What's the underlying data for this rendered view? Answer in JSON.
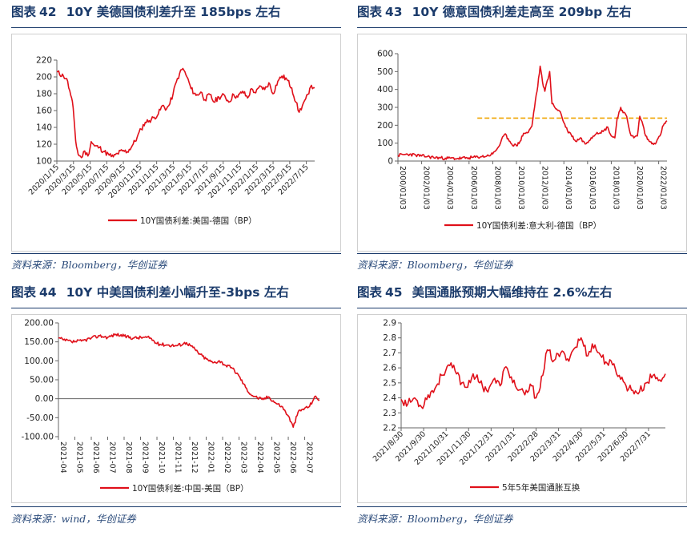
{
  "panels": [
    {
      "title_prefix": "图表",
      "number": "42",
      "title": "10Y 美德国债利差升至 185bps 左右",
      "source": "资料来源：Bloomberg，华创证券",
      "line_color": "#e0101a"
    },
    {
      "title_prefix": "图表",
      "number": "43",
      "title": "10Y 德意国债利差走高至 209bp 左右",
      "source": "资料来源：Bloomberg，华创证券",
      "line_color": "#e0101a",
      "reference_line_color": "#f0a500"
    },
    {
      "title_prefix": "图表",
      "number": "44",
      "title": "10Y 中美国债利差小幅升至-3bps 左右",
      "source": "资料来源：wind，华创证券",
      "line_color": "#e0101a"
    },
    {
      "title_prefix": "图表",
      "number": "45",
      "title": "美国通胀预期大幅维持在 2.6%左右",
      "source": "资料来源：Bloomberg，华创证券",
      "line_color": "#e0101a"
    }
  ],
  "chart_data": [
    {
      "type": "line",
      "title": "10Y 美德国债利差升至 185bps 左右",
      "legend": "10Y国债利差:美国-德国（BP）",
      "legend_position": "bottom",
      "ylim": [
        100,
        220
      ],
      "yticks": [
        100,
        120,
        140,
        160,
        180,
        200,
        220
      ],
      "xticks": [
        "2020/1/15",
        "2020/3/15",
        "2020/5/15",
        "2020/7/15",
        "2020/9/15",
        "2020/11/15",
        "2021/1/15",
        "2021/3/15",
        "2021/5/15",
        "2021/7/15",
        "2021/9/15",
        "2021/11/15",
        "2022/1/15",
        "2022/3/15",
        "2022/5/15",
        "2022/7/15"
      ],
      "x_range": [
        0,
        31.5
      ],
      "anchors": [
        [
          0,
          206
        ],
        [
          0.8,
          201
        ],
        [
          1.2,
          198
        ],
        [
          1.7,
          178
        ],
        [
          2.0,
          163
        ],
        [
          2.3,
          124
        ],
        [
          2.6,
          108
        ],
        [
          3.0,
          104
        ],
        [
          3.4,
          112
        ],
        [
          3.8,
          106
        ],
        [
          4.2,
          123
        ],
        [
          4.6,
          118
        ],
        [
          5.2,
          116
        ],
        [
          5.8,
          111
        ],
        [
          6.4,
          107
        ],
        [
          6.9,
          105
        ],
        [
          7.4,
          109
        ],
        [
          8.0,
          112
        ],
        [
          8.6,
          111
        ],
        [
          9.2,
          118
        ],
        [
          9.8,
          128
        ],
        [
          10.3,
          138
        ],
        [
          10.8,
          146
        ],
        [
          11.3,
          148
        ],
        [
          11.9,
          152
        ],
        [
          12.4,
          156
        ],
        [
          12.9,
          166
        ],
        [
          13.4,
          162
        ],
        [
          13.8,
          168
        ],
        [
          14.2,
          180
        ],
        [
          14.6,
          194
        ],
        [
          15.0,
          204
        ],
        [
          15.4,
          210
        ],
        [
          15.9,
          200
        ],
        [
          16.4,
          186
        ],
        [
          17.0,
          178
        ],
        [
          17.6,
          182
        ],
        [
          18.1,
          173
        ],
        [
          18.7,
          179
        ],
        [
          19.2,
          170
        ],
        [
          19.8,
          176
        ],
        [
          20.5,
          178
        ],
        [
          21.0,
          170
        ],
        [
          21.6,
          179
        ],
        [
          22.1,
          176
        ],
        [
          22.7,
          183
        ],
        [
          23.3,
          175
        ],
        [
          23.8,
          186
        ],
        [
          24.3,
          181
        ],
        [
          24.9,
          189
        ],
        [
          25.4,
          185
        ],
        [
          25.9,
          193
        ],
        [
          26.4,
          180
        ],
        [
          27.0,
          195
        ],
        [
          27.5,
          201
        ],
        [
          28.1,
          197
        ],
        [
          28.7,
          187
        ],
        [
          29.2,
          170
        ],
        [
          29.6,
          158
        ],
        [
          30.0,
          166
        ],
        [
          30.4,
          174
        ],
        [
          30.8,
          180
        ],
        [
          31.1,
          190
        ],
        [
          31.5,
          187
        ]
      ],
      "noise": 3.2
    },
    {
      "type": "line",
      "title": "10Y 德意国债利差走高至 209bp 左右",
      "legend": "10Y国债利差:意大利-德国（BP）",
      "legend_position": "bottom",
      "ylim": [
        0,
        600
      ],
      "yticks": [
        0,
        100,
        200,
        300,
        400,
        500,
        600
      ],
      "xticks": [
        "2000/01/03",
        "2002/01/03",
        "2004/01/03",
        "2006/01/03",
        "2008/01/03",
        "2010/01/03",
        "2012/01/03",
        "2014/01/03",
        "2016/01/03",
        "2018/01/03",
        "2020/01/03",
        "2022/01/03"
      ],
      "x_range": [
        2000.0,
        2022.7
      ],
      "reference_line": {
        "y": 240,
        "x_from": 2006.7,
        "x_to": 2022.7
      },
      "anchors": [
        [
          2000.0,
          32
        ],
        [
          2000.5,
          36
        ],
        [
          2001.0,
          38
        ],
        [
          2001.5,
          33
        ],
        [
          2002.0,
          28
        ],
        [
          2002.5,
          25
        ],
        [
          2003.0,
          20
        ],
        [
          2004.0,
          16
        ],
        [
          2005.0,
          14
        ],
        [
          2006.0,
          18
        ],
        [
          2007.0,
          24
        ],
        [
          2007.5,
          28
        ],
        [
          2008.0,
          40
        ],
        [
          2008.5,
          80
        ],
        [
          2009.0,
          150
        ],
        [
          2009.3,
          125
        ],
        [
          2009.6,
          95
        ],
        [
          2010.0,
          85
        ],
        [
          2010.3,
          110
        ],
        [
          2010.6,
          155
        ],
        [
          2011.0,
          160
        ],
        [
          2011.3,
          195
        ],
        [
          2011.6,
          340
        ],
        [
          2011.8,
          420
        ],
        [
          2012.0,
          530
        ],
        [
          2012.2,
          440
        ],
        [
          2012.4,
          390
        ],
        [
          2012.6,
          450
        ],
        [
          2012.8,
          500
        ],
        [
          2013.0,
          320
        ],
        [
          2013.4,
          290
        ],
        [
          2013.7,
          275
        ],
        [
          2014.0,
          215
        ],
        [
          2014.3,
          170
        ],
        [
          2014.6,
          150
        ],
        [
          2015.0,
          110
        ],
        [
          2015.4,
          130
        ],
        [
          2015.8,
          95
        ],
        [
          2016.3,
          130
        ],
        [
          2016.8,
          160
        ],
        [
          2017.3,
          165
        ],
        [
          2017.7,
          190
        ],
        [
          2018.0,
          140
        ],
        [
          2018.3,
          130
        ],
        [
          2018.5,
          240
        ],
        [
          2018.8,
          300
        ],
        [
          2019.0,
          270
        ],
        [
          2019.3,
          250
        ],
        [
          2019.6,
          155
        ],
        [
          2019.9,
          130
        ],
        [
          2020.2,
          140
        ],
        [
          2020.4,
          250
        ],
        [
          2020.6,
          220
        ],
        [
          2020.9,
          140
        ],
        [
          2021.2,
          110
        ],
        [
          2021.5,
          100
        ],
        [
          2021.8,
          105
        ],
        [
          2022.1,
          140
        ],
        [
          2022.4,
          200
        ],
        [
          2022.7,
          225
        ]
      ],
      "noise": 9
    },
    {
      "type": "line",
      "title": "10Y 中美国债利差小幅升至-3bps 左右",
      "legend": "10Y国债利差:中国-美国（BP）",
      "legend_position": "bottom",
      "ylim": [
        -100,
        200
      ],
      "yticks": [
        "-100.00",
        "-50.00",
        "0.00",
        "50.00",
        "100.00",
        "150.00",
        "200.00"
      ],
      "xticks": [
        "2021-04",
        "2021-05",
        "2021-06",
        "2021-07",
        "2021-08",
        "2021-09",
        "2021-10",
        "2021-11",
        "2021-12",
        "2022-01",
        "2022-02",
        "2022-03",
        "2022-04",
        "2022-05",
        "2022-06",
        "2022-07"
      ],
      "x_range": [
        0,
        15.9
      ],
      "anchors": [
        [
          0,
          160
        ],
        [
          0.3,
          155
        ],
        [
          0.8,
          150
        ],
        [
          1.4,
          152
        ],
        [
          2.0,
          160
        ],
        [
          2.5,
          166
        ],
        [
          3.0,
          162
        ],
        [
          3.5,
          170
        ],
        [
          4.0,
          165
        ],
        [
          4.6,
          160
        ],
        [
          5.2,
          162
        ],
        [
          5.6,
          160
        ],
        [
          6.0,
          145
        ],
        [
          6.6,
          142
        ],
        [
          7.2,
          140
        ],
        [
          7.8,
          148
        ],
        [
          8.2,
          135
        ],
        [
          8.6,
          118
        ],
        [
          9.0,
          105
        ],
        [
          9.4,
          95
        ],
        [
          9.8,
          100
        ],
        [
          10.2,
          88
        ],
        [
          10.6,
          80
        ],
        [
          11.0,
          60
        ],
        [
          11.4,
          30
        ],
        [
          11.7,
          12
        ],
        [
          12.0,
          5
        ],
        [
          12.4,
          -2
        ],
        [
          12.8,
          5
        ],
        [
          13.2,
          -10
        ],
        [
          13.6,
          -20
        ],
        [
          14.0,
          -45
        ],
        [
          14.3,
          -75
        ],
        [
          14.6,
          -35
        ],
        [
          15.0,
          -25
        ],
        [
          15.3,
          -20
        ],
        [
          15.6,
          5
        ],
        [
          15.9,
          -3
        ]
      ],
      "noise": 4.5
    },
    {
      "type": "line",
      "title": "美国通胀预期大幅维持在 2.6%左右",
      "legend": "5年5年美国通胀互换",
      "legend_position": "bottom",
      "ylim": [
        2.2,
        2.9
      ],
      "yticks": [
        "2.2",
        "2.3",
        "2.4",
        "2.5",
        "2.6",
        "2.7",
        "2.8",
        "2.9"
      ],
      "xticks": [
        "2021/8/30",
        "2021/9/30",
        "2021/10/31",
        "2021/11/30",
        "2021/12/31",
        "2022/1/31",
        "2022/2/28",
        "2022/3/31",
        "2022/4/30",
        "2022/5/31",
        "2022/6/30",
        "2022/7/31"
      ],
      "x_range": [
        0,
        11.75
      ],
      "anchors": [
        [
          0,
          2.39
        ],
        [
          0.3,
          2.36
        ],
        [
          0.6,
          2.4
        ],
        [
          0.9,
          2.34
        ],
        [
          1.2,
          2.42
        ],
        [
          1.5,
          2.46
        ],
        [
          1.8,
          2.55
        ],
        [
          2.1,
          2.62
        ],
        [
          2.4,
          2.58
        ],
        [
          2.7,
          2.5
        ],
        [
          2.9,
          2.47
        ],
        [
          3.2,
          2.56
        ],
        [
          3.5,
          2.5
        ],
        [
          3.8,
          2.45
        ],
        [
          4.1,
          2.52
        ],
        [
          4.4,
          2.48
        ],
        [
          4.6,
          2.6
        ],
        [
          4.9,
          2.54
        ],
        [
          5.2,
          2.45
        ],
        [
          5.5,
          2.42
        ],
        [
          5.8,
          2.48
        ],
        [
          6.0,
          2.4
        ],
        [
          6.3,
          2.55
        ],
        [
          6.5,
          2.72
        ],
        [
          6.8,
          2.65
        ],
        [
          7.1,
          2.7
        ],
        [
          7.4,
          2.66
        ],
        [
          7.7,
          2.73
        ],
        [
          8.0,
          2.8
        ],
        [
          8.3,
          2.68
        ],
        [
          8.5,
          2.76
        ],
        [
          8.8,
          2.7
        ],
        [
          9.1,
          2.64
        ],
        [
          9.4,
          2.62
        ],
        [
          9.7,
          2.55
        ],
        [
          10.0,
          2.48
        ],
        [
          10.3,
          2.45
        ],
        [
          10.6,
          2.44
        ],
        [
          10.9,
          2.5
        ],
        [
          11.2,
          2.55
        ],
        [
          11.5,
          2.52
        ],
        [
          11.75,
          2.56
        ]
      ],
      "noise": 0.03
    }
  ]
}
